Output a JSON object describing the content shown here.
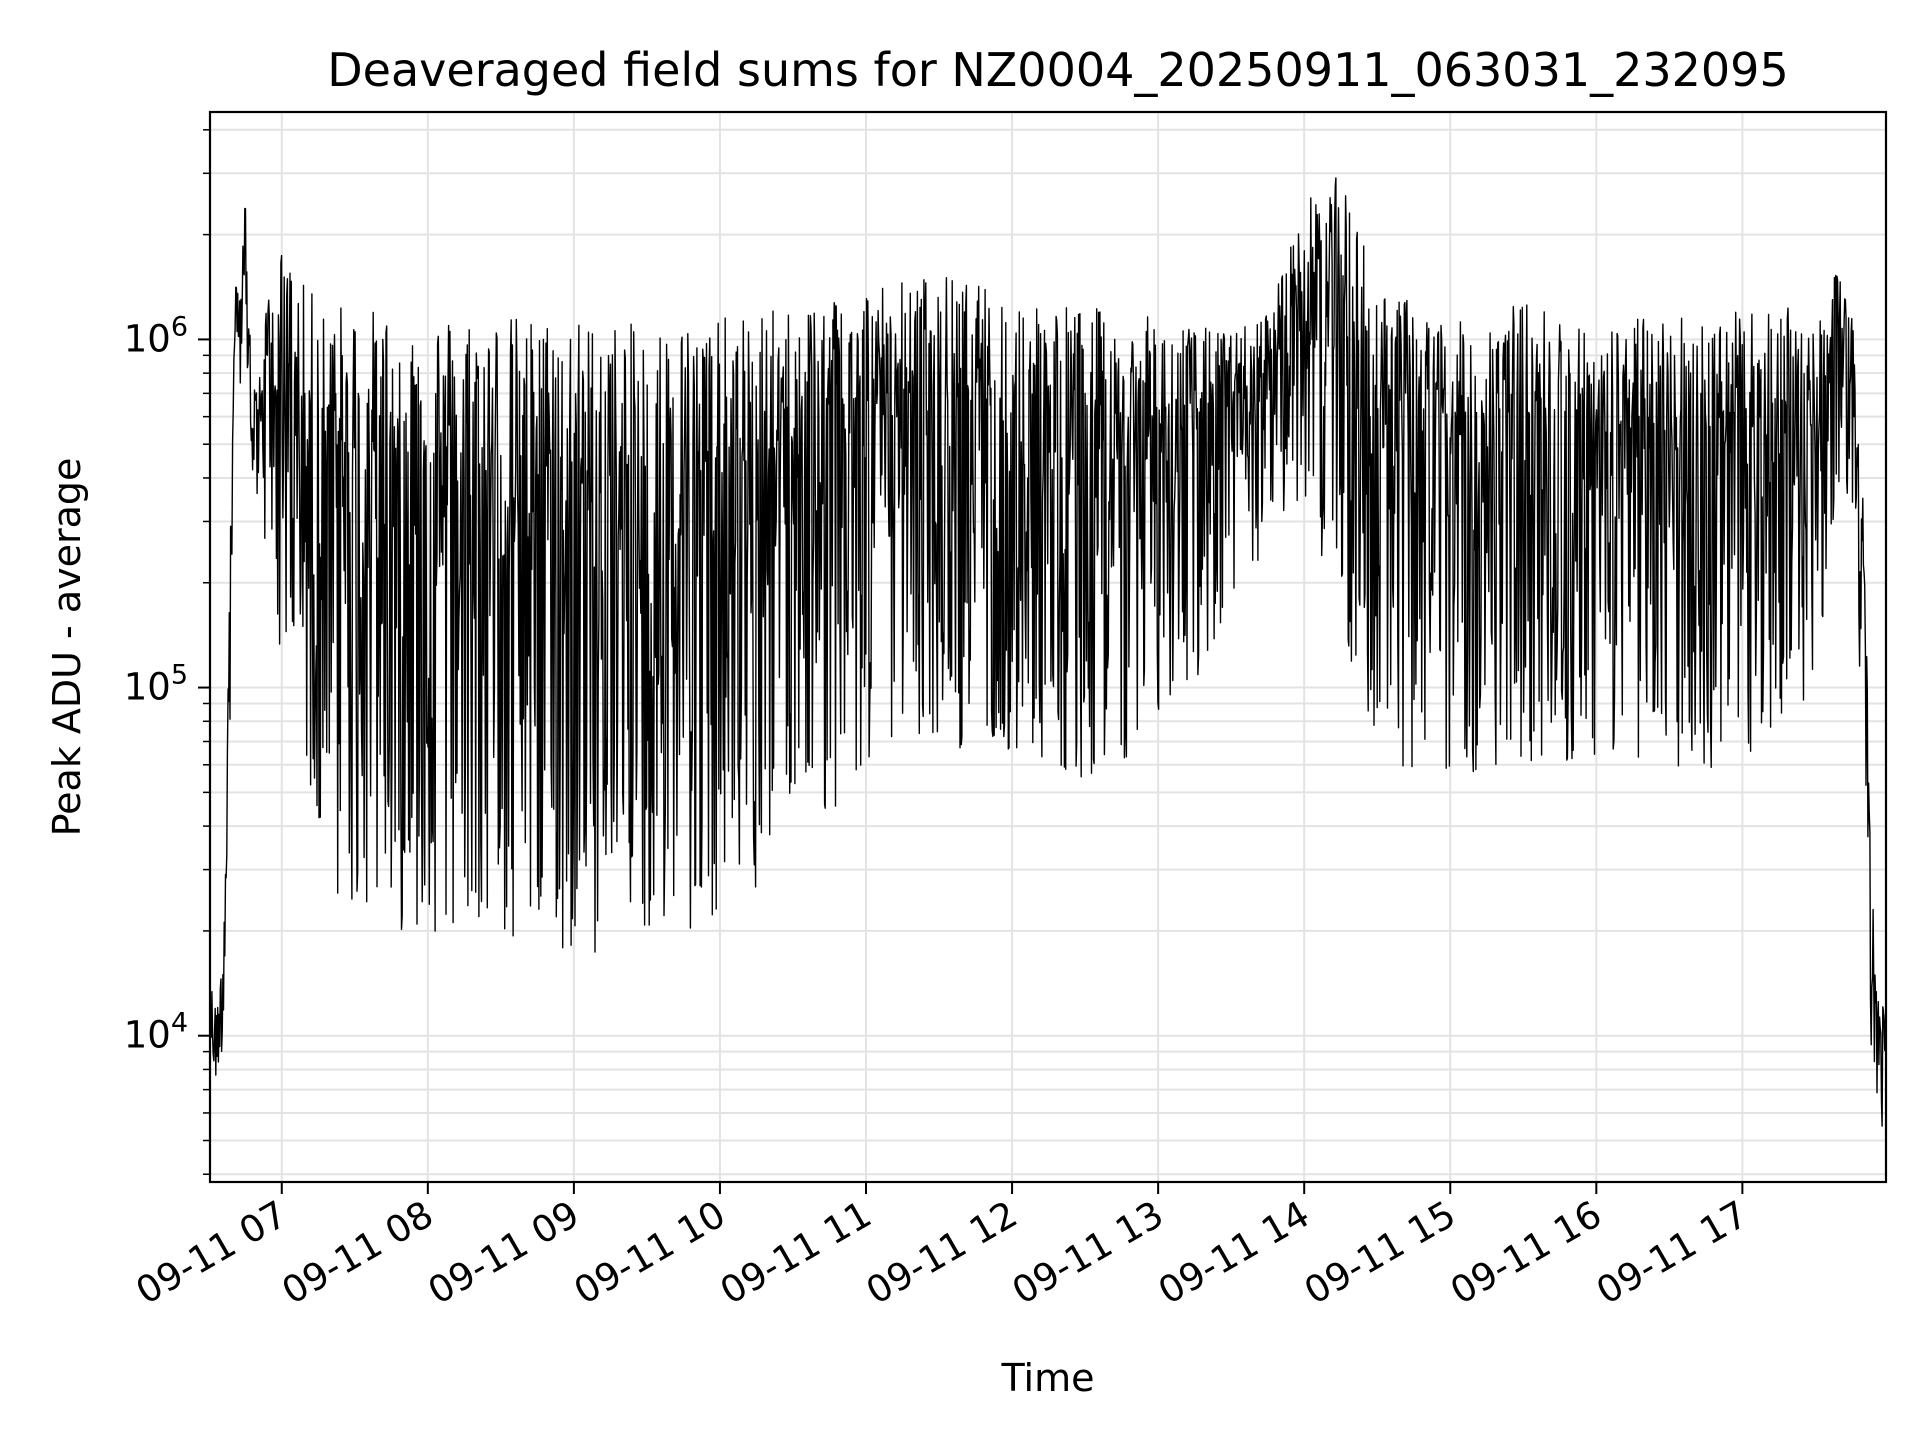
{
  "chart_data": {
    "type": "line",
    "title": "Deaveraged field sums for NZ0004_20250911_063031_232095",
    "xlabel": "Time",
    "ylabel": "Peak ADU - average",
    "yscale": "log",
    "ylim": [
      3800,
      4500000
    ],
    "xlim": [
      "09-11 06:30:31",
      "09-11 17:59:00"
    ],
    "grid": true,
    "x_ticks": [
      "09-11 07",
      "09-11 08",
      "09-11 09",
      "09-11 10",
      "09-11 11",
      "09-11 12",
      "09-11 13",
      "09-11 14",
      "09-11 15",
      "09-11 16",
      "09-11 17"
    ],
    "y_ticks": [
      {
        "value": 10000,
        "base": "10",
        "exp": "4"
      },
      {
        "value": 100000,
        "base": "10",
        "exp": "5"
      },
      {
        "value": 1000000,
        "base": "10",
        "exp": "6"
      }
    ],
    "line_color": "#000000",
    "series": [
      {
        "x": [
          "06:30",
          "06:33",
          "06:36",
          "06:39",
          "06:41",
          "06:43",
          "06:45",
          "06:48",
          "06:51",
          "06:55",
          "07:00",
          "07:05",
          "07:10",
          "07:20",
          "07:30",
          "07:45",
          "08:00",
          "08:30",
          "09:00",
          "09:30",
          "10:00",
          "10:30",
          "10:45",
          "11:00",
          "11:30",
          "12:00",
          "12:30",
          "13:00",
          "13:30",
          "13:45",
          "14:00",
          "14:15",
          "14:30",
          "15:00",
          "15:30",
          "16:00",
          "16:30",
          "17:00",
          "17:30",
          "17:40",
          "17:45",
          "17:50",
          "17:53",
          "17:56",
          "17:59"
        ],
        "upper": [
          15000,
          12000,
          18000,
          400000,
          1500000,
          1300000,
          2700000,
          750000,
          800000,
          1500000,
          1800000,
          1600000,
          1400000,
          1300000,
          1250000,
          1200000,
          1200000,
          1180000,
          1150000,
          1100000,
          1150000,
          1250000,
          1400000,
          1450000,
          1550000,
          1350000,
          1250000,
          1150000,
          1050000,
          1200000,
          2500000,
          3000000,
          1500000,
          1100000,
          1300000,
          1100000,
          1200000,
          1200000,
          1250000,
          1600000,
          1400000,
          300000,
          30000,
          12000,
          14000
        ],
        "lower": [
          8000,
          7000,
          9000,
          70000,
          1200000,
          700000,
          400000,
          350000,
          300000,
          200000,
          120000,
          60000,
          40000,
          25000,
          22000,
          20000,
          20000,
          18000,
          17000,
          18000,
          22000,
          28000,
          40000,
          60000,
          70000,
          60000,
          55000,
          70000,
          150000,
          250000,
          350000,
          150000,
          60000,
          55000,
          60000,
          60000,
          60000,
          55000,
          100000,
          400000,
          300000,
          50000,
          8000,
          5000,
          6000
        ]
      }
    ]
  }
}
